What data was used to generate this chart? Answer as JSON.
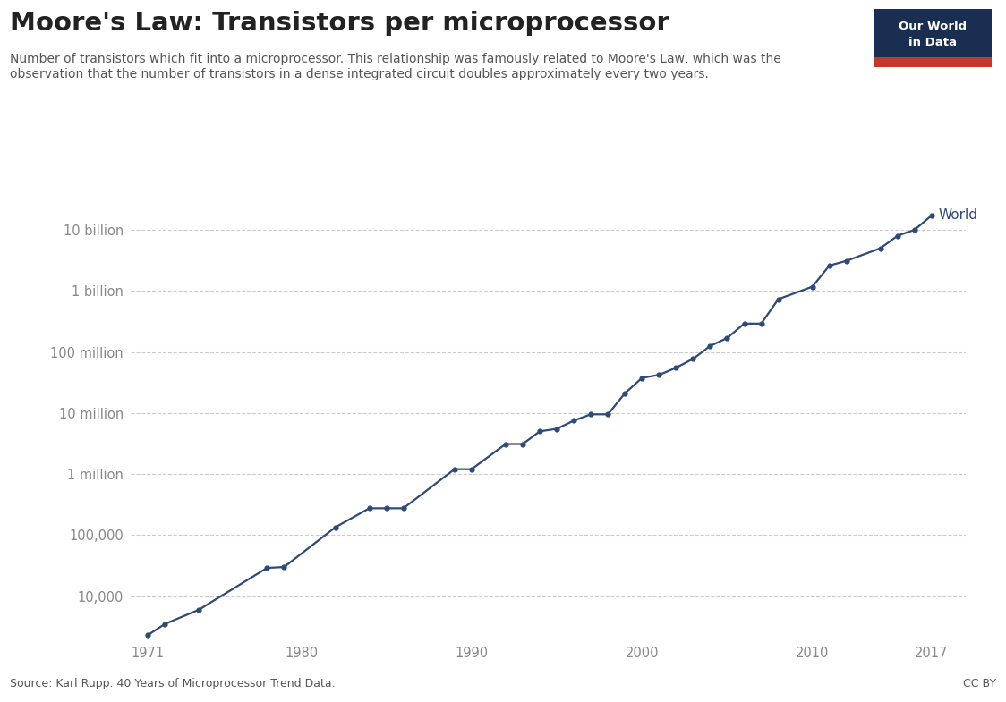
{
  "title": "Moore's Law: Transistors per microprocessor",
  "subtitle_line1": "Number of transistors which fit into a microprocessor. This relationship was famously related to Moore's Law, which was the",
  "subtitle_line2": "observation that the number of transistors in a dense integrated circuit doubles approximately every two years.",
  "source": "Source: Karl Rupp. 40 Years of Microprocessor Trend Data.",
  "credit": "CC BY",
  "line_color": "#2e4a7a",
  "bg_color": "#ffffff",
  "grid_color": "#cccccc",
  "label_color": "#888888",
  "title_color": "#222222",
  "subtitle_color": "#555555",
  "years": [
    1971,
    1972,
    1974,
    1978,
    1979,
    1982,
    1984,
    1985,
    1986,
    1989,
    1990,
    1992,
    1993,
    1994,
    1995,
    1996,
    1997,
    1998,
    1999,
    2000,
    2001,
    2002,
    2003,
    2004,
    2005,
    2006,
    2007,
    2008,
    2010,
    2011,
    2012,
    2014,
    2015,
    2016,
    2017
  ],
  "transistors": [
    2300,
    3500,
    6000,
    29000,
    30000,
    134000,
    275000,
    275000,
    275000,
    1200000,
    1200000,
    3100000,
    3100000,
    5000000,
    5500000,
    7500000,
    9500000,
    9500000,
    21000000,
    37500000,
    42000000,
    55000000,
    77000000,
    125000000,
    169000000,
    291000000,
    291000000,
    731000000,
    1170000000,
    2600000000,
    3100000000,
    5000000000,
    8000000000,
    10000000000,
    17200000000
  ],
  "ytick_values": [
    10000,
    100000,
    1000000,
    10000000,
    100000000,
    1000000000,
    10000000000
  ],
  "ytick_labels": [
    "10,000",
    "100,000",
    "1 million",
    "10 million",
    "100 million",
    "1 billion",
    "10 billion"
  ],
  "xtick_values": [
    1971,
    1980,
    1990,
    2000,
    2010,
    2017
  ],
  "xlim": [
    1970,
    2019
  ],
  "ylim_log": [
    2000,
    35000000000
  ],
  "owid_box_color": "#1a2e52",
  "owid_bar_color": "#c0392b",
  "world_label": "World"
}
